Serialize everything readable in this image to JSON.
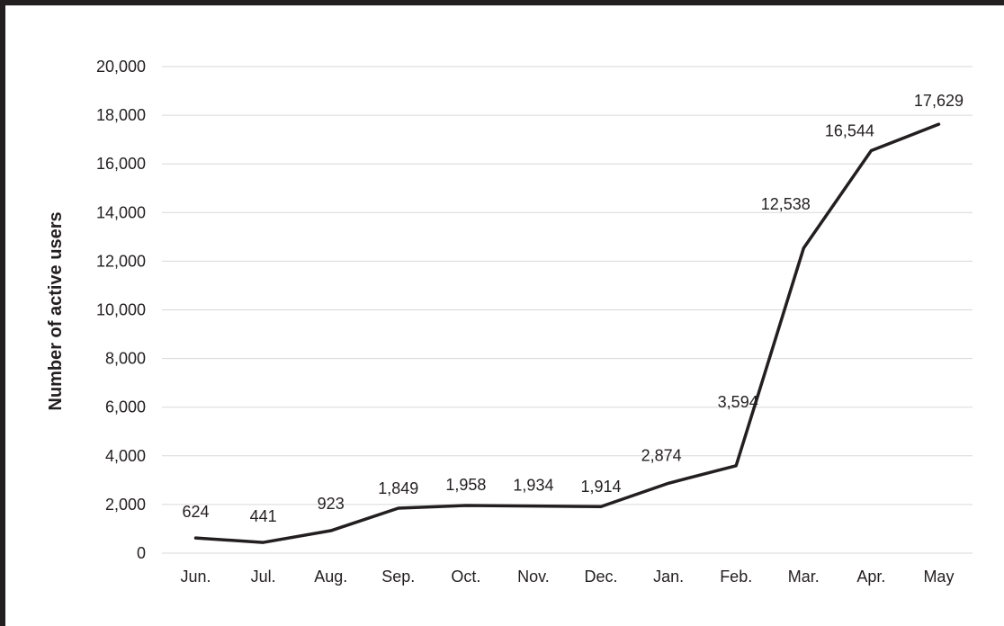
{
  "chart_data": {
    "type": "line",
    "title": "",
    "xlabel": "",
    "ylabel": "Number of active users",
    "categories": [
      "Jun.",
      "Jul.",
      "Aug.",
      "Sep.",
      "Oct.",
      "Nov.",
      "Dec.",
      "Jan.",
      "Feb.",
      "Mar.",
      "Apr.",
      "May"
    ],
    "series": [
      {
        "values": [
          624,
          441,
          923,
          1849,
          1958,
          1934,
          1914,
          2874,
          3594,
          12538,
          16544,
          17629
        ],
        "data_labels": [
          "624",
          "441",
          "923",
          "1,849",
          "1,958",
          "1,934",
          "1,914",
          "2,874",
          "3,594",
          "12,538",
          "16,544",
          "17,629"
        ]
      }
    ],
    "ylim": [
      0,
      20000
    ],
    "yticks": [
      0,
      2000,
      4000,
      6000,
      8000,
      10000,
      12000,
      14000,
      16000,
      18000,
      20000
    ],
    "ytick_labels": [
      "0",
      "2,000",
      "4,000",
      "6,000",
      "8,000",
      "10,000",
      "12,000",
      "14,000",
      "16,000",
      "18,000",
      "20,000"
    ],
    "grid": true,
    "legend": "none",
    "colors": {
      "line": "#231f20",
      "grid": "#d9d9d9",
      "text": "#231f20",
      "border": "#231f20"
    }
  }
}
